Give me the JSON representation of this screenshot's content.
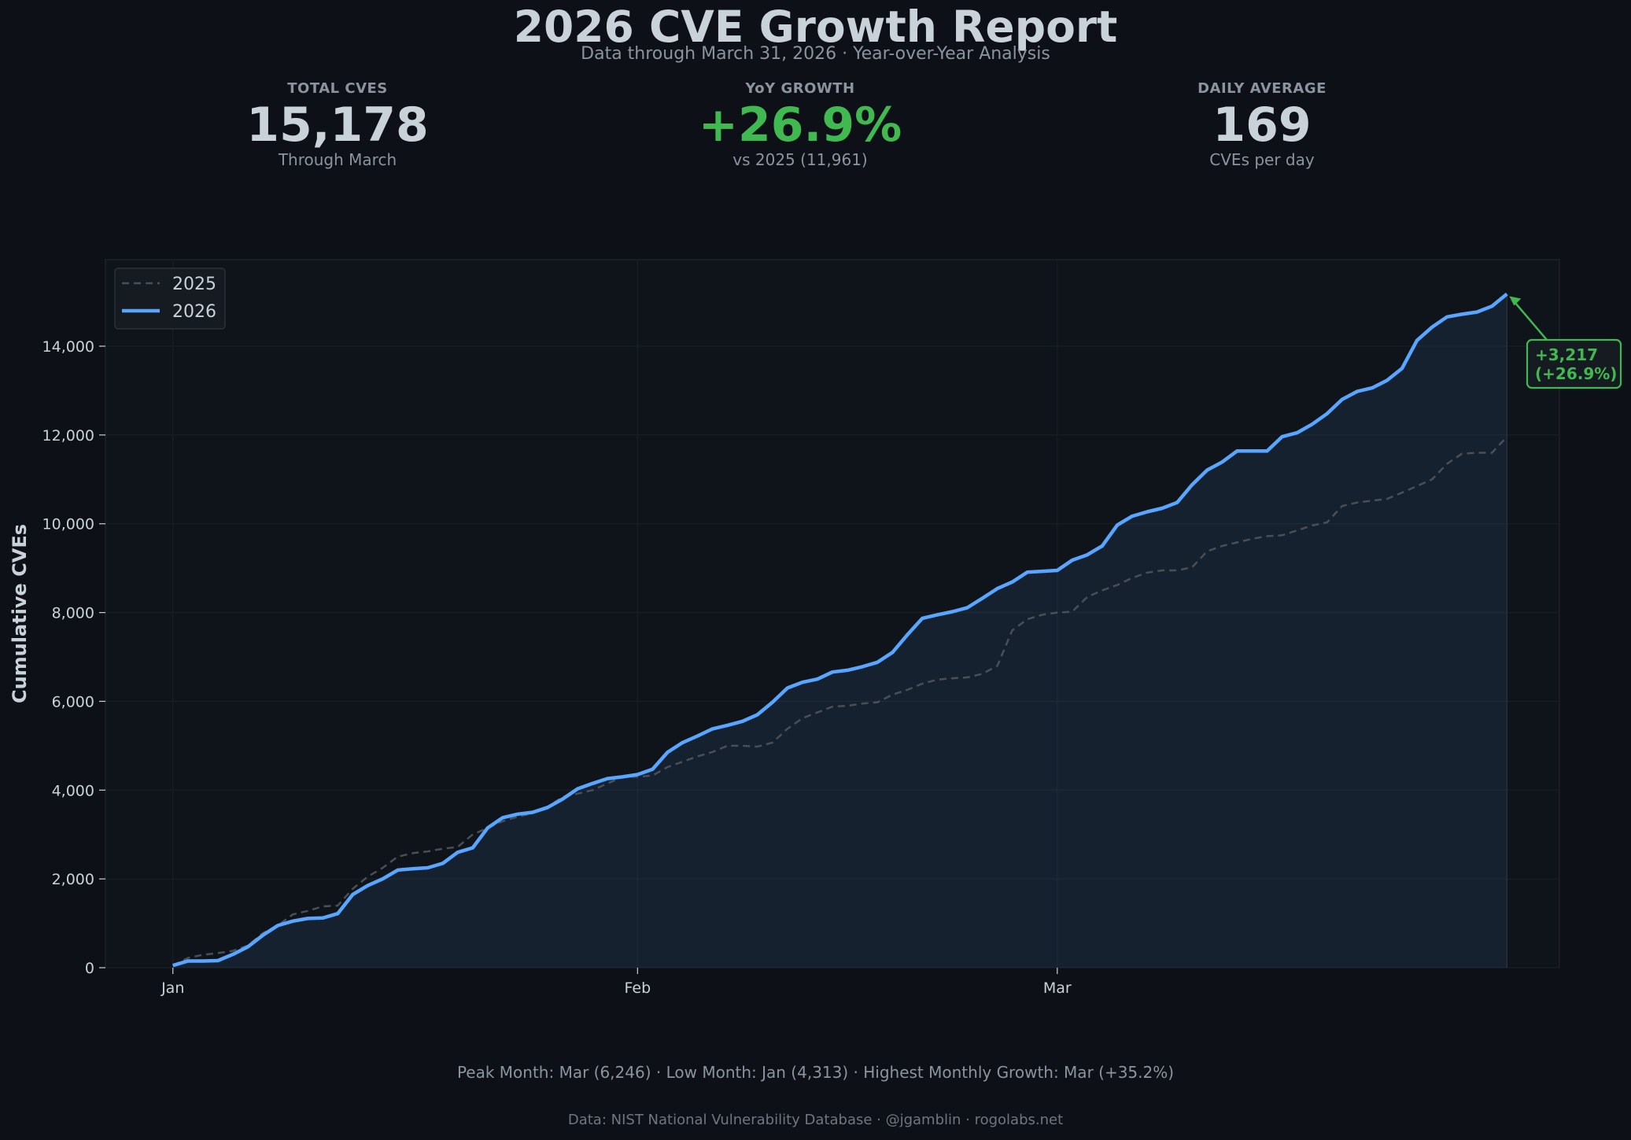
{
  "header": {
    "title": "2026 CVE Growth Report",
    "subtitle": "Data through March 31, 2026  ·  Year-over-Year Analysis"
  },
  "stats": [
    {
      "label": "TOTAL CVES",
      "value": "15,178",
      "sub": "Through March"
    },
    {
      "label": "YoY GROWTH",
      "value": "+26.9%",
      "sub": "vs 2025 (11,961)"
    },
    {
      "label": "DAILY AVERAGE",
      "value": "169",
      "sub": "CVEs per day"
    }
  ],
  "colors": {
    "background": "#0d1117",
    "series_2026": "#58a6ff",
    "series_2025": "#484f58",
    "accent_green": "#3fb950",
    "text": "#c9d1d9",
    "muted": "#8b949e"
  },
  "chart_data": {
    "type": "line",
    "title": "",
    "xlabel": "",
    "ylabel": "Cumulative CVEs",
    "x_unit": "day of year",
    "xlim": [
      -4.5,
      92.5
    ],
    "ylim": [
      0,
      15950
    ],
    "y_ticks": [
      0,
      2000,
      4000,
      6000,
      8000,
      10000,
      12000,
      14000
    ],
    "y_tick_labels": [
      "0",
      "2,000",
      "4,000",
      "6,000",
      "8,000",
      "10,000",
      "12,000",
      "14,000"
    ],
    "x_ticks": [
      0,
      31,
      59
    ],
    "x_tick_labels": [
      "Jan",
      "Feb",
      "Mar"
    ],
    "grid": true,
    "legend": {
      "position": "top-left",
      "entries": [
        "2025",
        "2026"
      ]
    },
    "series": [
      {
        "name": "2025",
        "style": "dashed",
        "x": [
          0,
          1,
          2,
          3,
          4,
          5,
          6,
          7,
          8,
          9,
          10,
          11,
          12,
          13,
          14,
          15,
          16,
          17,
          18,
          19,
          20,
          21,
          22,
          23,
          24,
          25,
          26,
          27,
          28,
          29,
          30,
          31,
          32,
          33,
          34,
          35,
          36,
          37,
          38,
          39,
          40,
          41,
          42,
          43,
          44,
          45,
          46,
          47,
          48,
          49,
          50,
          51,
          52,
          53,
          54,
          55,
          56,
          57,
          58,
          59,
          60,
          61,
          62,
          63,
          64,
          65,
          66,
          67,
          68,
          69,
          70,
          71,
          72,
          73,
          74,
          75,
          76,
          77,
          78,
          79,
          80,
          81,
          82,
          83,
          84,
          85,
          86,
          87,
          88,
          89
        ],
        "values": [
          50,
          220,
          290,
          330,
          380,
          500,
          780,
          950,
          1200,
          1280,
          1380,
          1400,
          1780,
          2050,
          2250,
          2500,
          2580,
          2620,
          2680,
          2720,
          3000,
          3150,
          3300,
          3400,
          3480,
          3620,
          3850,
          3920,
          4000,
          4150,
          4300,
          4300,
          4330,
          4520,
          4640,
          4760,
          4860,
          5000,
          5000,
          4980,
          5070,
          5380,
          5620,
          5750,
          5880,
          5900,
          5950,
          5980,
          6150,
          6260,
          6400,
          6490,
          6520,
          6540,
          6620,
          6800,
          7600,
          7850,
          7950,
          8000,
          8020,
          8350,
          8500,
          8620,
          8780,
          8900,
          8950,
          8950,
          9020,
          9380,
          9500,
          9580,
          9660,
          9720,
          9740,
          9850,
          9960,
          10030,
          10400,
          10480,
          10520,
          10560,
          10700,
          10850,
          11000,
          11350,
          11580,
          11600,
          11600,
          11961
        ]
      },
      {
        "name": "2026",
        "style": "solid",
        "x": [
          0,
          1,
          2,
          3,
          4,
          5,
          6,
          7,
          8,
          9,
          10,
          11,
          12,
          13,
          14,
          15,
          16,
          17,
          18,
          19,
          20,
          21,
          22,
          23,
          24,
          25,
          26,
          27,
          28,
          29,
          30,
          31,
          32,
          33,
          34,
          35,
          36,
          37,
          38,
          39,
          40,
          41,
          42,
          43,
          44,
          45,
          46,
          47,
          48,
          49,
          50,
          51,
          52,
          53,
          54,
          55,
          56,
          57,
          58,
          59,
          60,
          61,
          62,
          63,
          64,
          65,
          66,
          67,
          68,
          69,
          70,
          71,
          72,
          73,
          74,
          75,
          76,
          77,
          78,
          79,
          80,
          81,
          82,
          83,
          84,
          85,
          86,
          87,
          88,
          89
        ],
        "values": [
          50,
          150,
          150,
          160,
          300,
          470,
          730,
          950,
          1050,
          1110,
          1120,
          1220,
          1650,
          1850,
          2000,
          2200,
          2230,
          2250,
          2350,
          2600,
          2700,
          3150,
          3380,
          3460,
          3500,
          3610,
          3800,
          4030,
          4150,
          4260,
          4300,
          4350,
          4470,
          4850,
          5070,
          5220,
          5380,
          5460,
          5550,
          5700,
          5980,
          6300,
          6430,
          6500,
          6660,
          6700,
          6780,
          6880,
          7100,
          7500,
          7870,
          7950,
          8020,
          8110,
          8320,
          8540,
          8690,
          8910,
          8930,
          8950,
          9180,
          9300,
          9500,
          9970,
          10170,
          10270,
          10350,
          10480,
          10880,
          11210,
          11390,
          11640,
          11640,
          11640,
          11960,
          12050,
          12240,
          12480,
          12800,
          12980,
          13060,
          13230,
          13500,
          14130,
          14430,
          14660,
          14720,
          14770,
          14900,
          15178
        ]
      }
    ],
    "annotation": {
      "line1": "+3,217",
      "line2": "(+26.9%)"
    }
  },
  "footer": {
    "stats": "Peak Month: Mar (6,246)  ·  Low Month: Jan (4,313)  ·  Highest Monthly Growth: Mar (+35.2%)",
    "credit": "Data: NIST National Vulnerability Database  ·  @jgamblin · rogolabs.net"
  }
}
